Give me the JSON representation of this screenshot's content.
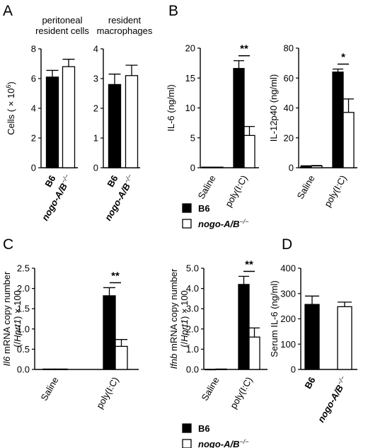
{
  "panel_letters": [
    "A",
    "B",
    "C",
    "D"
  ],
  "chart_data": [
    {
      "id": "A1",
      "type": "bar",
      "panel": "A",
      "title_lines": [
        "peritoneal",
        "resident cells"
      ],
      "ylabel": "Cells ( × 10⁶)",
      "categories": [
        "B6",
        "nogo-A/B-/-"
      ],
      "values": [
        6.1,
        6.8
      ],
      "errors": [
        0.45,
        0.5
      ],
      "ylim": [
        0,
        8
      ],
      "yticks": [
        "0",
        "2",
        "4",
        "6",
        "8"
      ],
      "ytick_values": [
        0,
        2,
        4,
        6,
        8
      ],
      "fills": [
        "#000000",
        "#ffffff"
      ]
    },
    {
      "id": "A2",
      "type": "bar",
      "panel": "A",
      "title_lines": [
        "resident",
        "macrophages"
      ],
      "ylabel": "",
      "categories": [
        "B6",
        "nogo-A/B-/-"
      ],
      "values": [
        2.8,
        3.1
      ],
      "errors": [
        0.35,
        0.35
      ],
      "ylim": [
        0,
        4
      ],
      "yticks": [
        "0",
        "1",
        "2",
        "3",
        "4"
      ],
      "ytick_values": [
        0,
        1,
        2,
        3,
        4
      ],
      "fills": [
        "#000000",
        "#ffffff"
      ]
    },
    {
      "id": "B1",
      "type": "bar",
      "panel": "B",
      "ylabel": "IL-6 (ng/ml)",
      "categories": [
        "Saline",
        "poly(I:C)"
      ],
      "series": [
        {
          "name": "B6",
          "values": [
            0.1,
            16.6
          ],
          "errors": [
            0,
            1.3
          ]
        },
        {
          "name": "nogo-A/B-/-",
          "values": [
            0.1,
            5.4
          ],
          "errors": [
            0,
            1.5
          ]
        }
      ],
      "ylim": [
        0,
        20
      ],
      "yticks": [
        "0",
        "5",
        "10",
        "15",
        "20"
      ],
      "ytick_values": [
        0,
        5,
        10,
        15,
        20
      ],
      "significance": "**"
    },
    {
      "id": "B2",
      "type": "bar",
      "panel": "B",
      "ylabel": "IL-12p40 (ng/ml)",
      "categories": [
        "Saline",
        "poly(I:C)"
      ],
      "series": [
        {
          "name": "B6",
          "values": [
            1.0,
            64
          ],
          "errors": [
            0.3,
            2.0
          ]
        },
        {
          "name": "nogo-A/B-/-",
          "values": [
            1.2,
            37
          ],
          "errors": [
            0.3,
            9.0
          ]
        }
      ],
      "ylim": [
        0,
        80
      ],
      "yticks": [
        "0",
        "20",
        "40",
        "60",
        "80"
      ],
      "ytick_values": [
        0,
        20,
        40,
        60,
        80
      ],
      "significance": "*"
    },
    {
      "id": "C1",
      "type": "bar",
      "panel": "C",
      "ylabel_lines": [
        "Il6 mRNA copy number",
        "(/Hprt1) × 100"
      ],
      "categories": [
        "Saline",
        "poly(I:C)"
      ],
      "series": [
        {
          "name": "B6",
          "values": [
            0.01,
            1.82
          ],
          "errors": [
            0,
            0.2
          ]
        },
        {
          "name": "nogo-A/B-/-",
          "values": [
            0.01,
            0.57
          ],
          "errors": [
            0,
            0.17
          ]
        }
      ],
      "ylim": [
        0,
        2.5
      ],
      "yticks": [
        "0.0",
        "0.5",
        "1.0",
        "1.5",
        "2.0",
        "2.5"
      ],
      "ytick_values": [
        0,
        0.5,
        1.0,
        1.5,
        2.0,
        2.5
      ],
      "significance": "**"
    },
    {
      "id": "C2",
      "type": "bar",
      "panel": "C",
      "ylabel_lines": [
        "Ifnb mRNA copy number",
        "(/Hprt1) × 100"
      ],
      "categories": [
        "Saline",
        "poly(I:C)"
      ],
      "series": [
        {
          "name": "B6",
          "values": [
            0.01,
            4.2
          ],
          "errors": [
            0,
            0.4
          ]
        },
        {
          "name": "nogo-A/B-/-",
          "values": [
            0.02,
            1.6
          ],
          "errors": [
            0,
            0.45
          ]
        }
      ],
      "ylim": [
        0,
        5.0
      ],
      "yticks": [
        "0.0",
        "1.0",
        "2.0",
        "3.0",
        "4.0",
        "5.0"
      ],
      "ytick_values": [
        0,
        1,
        2,
        3,
        4,
        5
      ],
      "significance": "**"
    },
    {
      "id": "D",
      "type": "bar",
      "panel": "D",
      "ylabel": "Serum IL-6 (ng/ml)",
      "categories": [
        "B6",
        "nogo-A/B-/-"
      ],
      "values": [
        257,
        248
      ],
      "errors": [
        33,
        18
      ],
      "ylim": [
        0,
        400
      ],
      "yticks": [
        "0",
        "100",
        "200",
        "300",
        "400"
      ],
      "ytick_values": [
        0,
        100,
        200,
        300,
        400
      ],
      "fills": [
        "#000000",
        "#ffffff"
      ]
    }
  ],
  "legends": {
    "B": [
      {
        "label": "B6",
        "fill": "#000000"
      },
      {
        "label": "nogo-A/B-/-",
        "fill": "#ffffff"
      }
    ],
    "C": [
      {
        "label": "B6",
        "fill": "#000000"
      },
      {
        "label": "nogo-A/B-/-",
        "fill": "#ffffff"
      }
    ]
  }
}
